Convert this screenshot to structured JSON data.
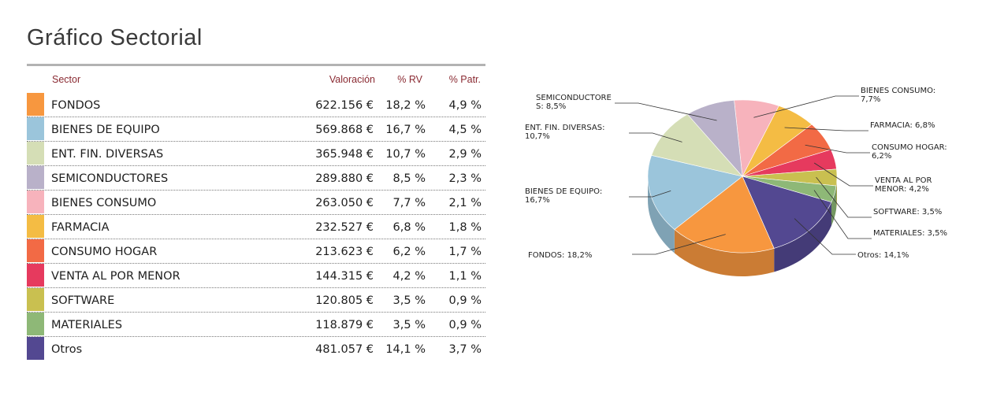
{
  "title": "Gráfico Sectorial",
  "table": {
    "headers": {
      "sector": "Sector",
      "valuation": "Valoración",
      "rv": "% RV",
      "patr": "% Patr."
    },
    "rows": [
      {
        "name": "FONDOS",
        "valuation": "622.156 €",
        "rv": "18,2 %",
        "patr": "4,9 %",
        "color": "#F7973F"
      },
      {
        "name": "BIENES DE EQUIPO",
        "valuation": "569.868 €",
        "rv": "16,7 %",
        "patr": "4,5 %",
        "color": "#9BC5DB"
      },
      {
        "name": "ENT. FIN. DIVERSAS",
        "valuation": "365.948 €",
        "rv": "10,7 %",
        "patr": "2,9 %",
        "color": "#D5DEB6"
      },
      {
        "name": "SEMICONDUCTORES",
        "valuation": "289.880 €",
        "rv": "8,5 %",
        "patr": "2,3 %",
        "color": "#B9B1C9"
      },
      {
        "name": "BIENES CONSUMO",
        "valuation": "263.050 €",
        "rv": "7,7 %",
        "patr": "2,1 %",
        "color": "#F7B3BC"
      },
      {
        "name": "FARMACIA",
        "valuation": "232.527 €",
        "rv": "6,8 %",
        "patr": "1,8 %",
        "color": "#F4BC44"
      },
      {
        "name": "CONSUMO HOGAR",
        "valuation": "213.623 €",
        "rv": "6,2 %",
        "patr": "1,7 %",
        "color": "#F26A45"
      },
      {
        "name": "VENTA AL POR MENOR",
        "valuation": "144.315 €",
        "rv": "4,2 %",
        "patr": "1,1 %",
        "color": "#E63A5E"
      },
      {
        "name": "SOFTWARE",
        "valuation": "120.805 €",
        "rv": "3,5 %",
        "patr": "0,9 %",
        "color": "#C9C050"
      },
      {
        "name": "MATERIALES",
        "valuation": "118.879 €",
        "rv": "3,5 %",
        "patr": "0,9 %",
        "color": "#8EB877"
      },
      {
        "name": "Otros",
        "valuation": "481.057 €",
        "rv": "14,1 %",
        "patr": "3,7 %",
        "color": "#534891"
      }
    ]
  },
  "chart_data": {
    "type": "pie",
    "title": "",
    "slices": [
      {
        "label": [
          "BIENES CONSUMO:",
          "7,7%"
        ],
        "value": 7.7,
        "color": "#F7B3BC"
      },
      {
        "label": [
          "FARMACIA: 6,8%"
        ],
        "value": 6.8,
        "color": "#F4BC44"
      },
      {
        "label": [
          "CONSUMO HOGAR:",
          "6,2%"
        ],
        "value": 6.2,
        "color": "#F26A45"
      },
      {
        "label": [
          "VENTA AL POR",
          "MENOR: 4,2%"
        ],
        "value": 4.2,
        "color": "#E63A5E"
      },
      {
        "label": [
          "SOFTWARE: 3,5%"
        ],
        "value": 3.5,
        "color": "#C9C050"
      },
      {
        "label": [
          "MATERIALES: 3,5%"
        ],
        "value": 3.5,
        "color": "#8EB877"
      },
      {
        "label": [
          "Otros: 14,1%"
        ],
        "value": 14.1,
        "color": "#534891"
      },
      {
        "label": [
          "FONDOS: 18,2%"
        ],
        "value": 18.2,
        "color": "#F7973F"
      },
      {
        "label": [
          "BIENES DE EQUIPO:",
          "16,7%"
        ],
        "value": 16.7,
        "color": "#9BC5DB"
      },
      {
        "label": [
          "ENT. FIN. DIVERSAS:",
          "10,7%"
        ],
        "value": 10.7,
        "color": "#D5DEB6"
      },
      {
        "label": [
          "SEMICONDUCTORE",
          "S: 8,5%"
        ],
        "value": 8.5,
        "color": "#B9B1C9"
      }
    ]
  }
}
